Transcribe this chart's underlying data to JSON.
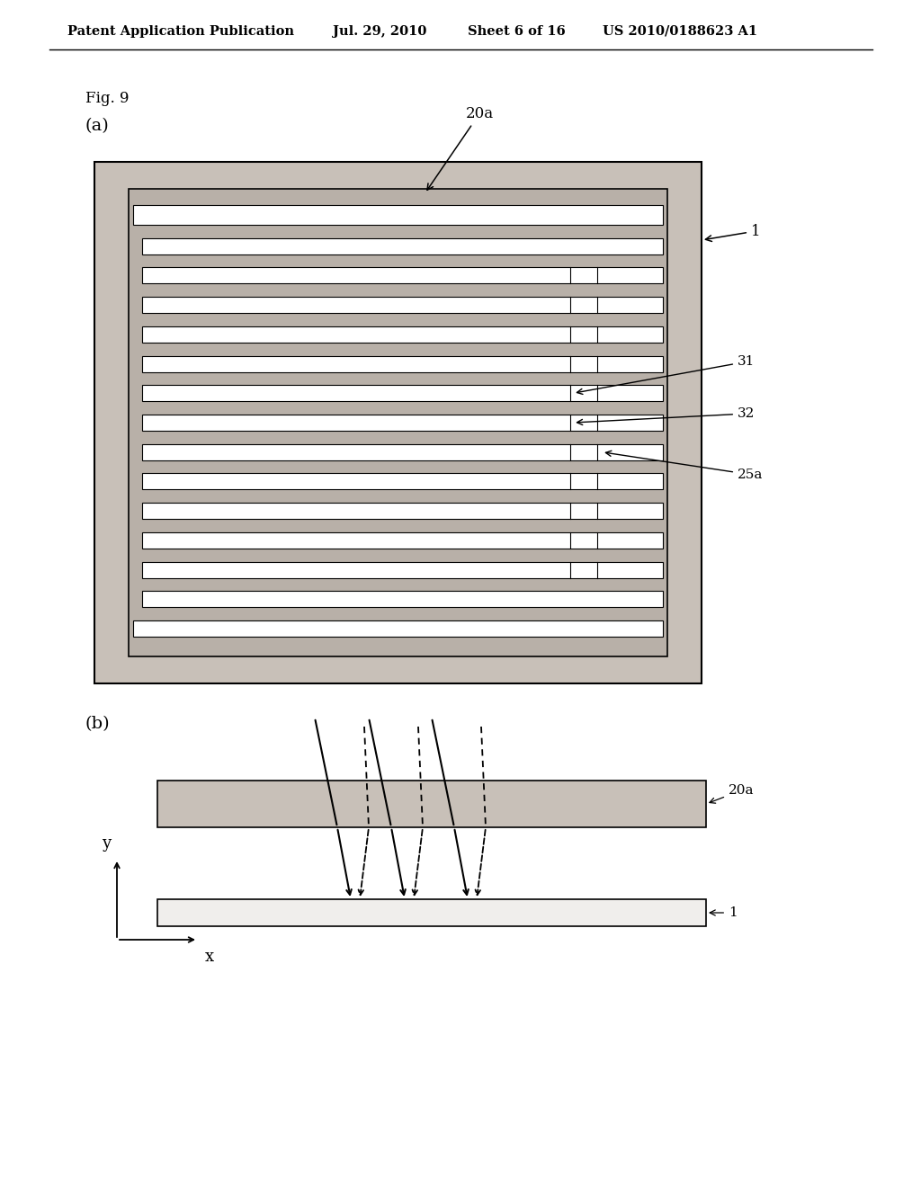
{
  "bg_color": "#ffffff",
  "header_text": "Patent Application Publication",
  "header_date": "Jul. 29, 2010",
  "header_sheet": "Sheet 6 of 16",
  "header_patent": "US 2010/0188623 A1",
  "fig_label": "Fig. 9",
  "sub_a_label": "(a)",
  "sub_b_label": "(b)",
  "label_20a": "20a",
  "label_1": "1",
  "label_31": "31",
  "label_32": "32",
  "label_25a": "25a",
  "gray_outer": "#c0b8b0",
  "gray_inner": "#b8b0a8",
  "stripe_color": "#ffffff",
  "slab_gray": "#c0b8b0"
}
